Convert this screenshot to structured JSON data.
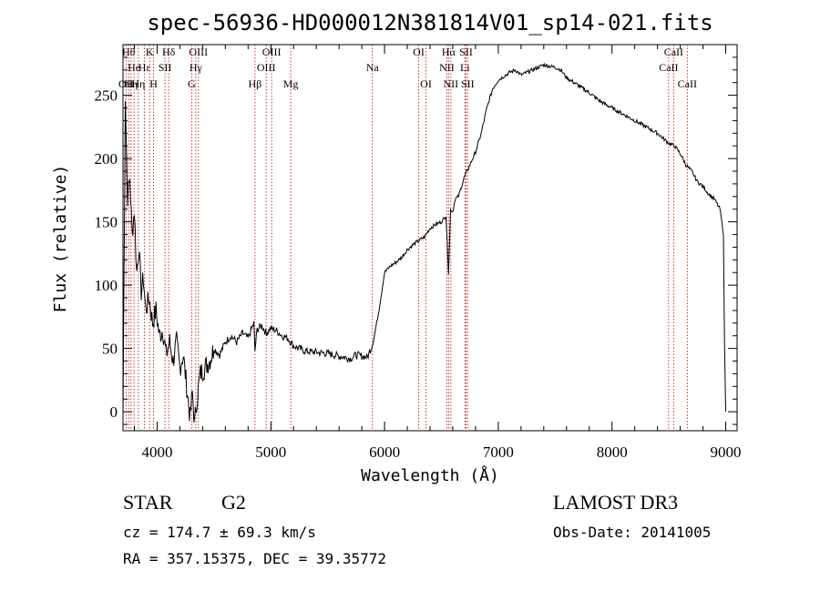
{
  "chart_data": {
    "type": "line",
    "title": "spec-56936-HD000012N381814V01_sp14-021.fits",
    "xlabel": "Wavelength (Å)",
    "ylabel": "Flux (relative)",
    "xlim": [
      3700,
      9100
    ],
    "ylim": [
      -15,
      290
    ],
    "xticks": [
      4000,
      5000,
      6000,
      7000,
      8000,
      9000
    ],
    "yticks": [
      0,
      50,
      100,
      150,
      200,
      250
    ],
    "series": [
      {
        "values_note": "",
        "x": [
          3700,
          3720,
          3740,
          3760,
          3780,
          3800,
          3820,
          3840,
          3860,
          3880,
          3900,
          3930,
          3960,
          3990,
          4020,
          4050,
          4080,
          4110,
          4140,
          4170,
          4200,
          4230,
          4260,
          4290,
          4310,
          4330,
          4350,
          4380,
          4420,
          4460,
          4500,
          4550,
          4600,
          4650,
          4700,
          4750,
          4800,
          4850,
          4860,
          4880,
          4920,
          4960,
          5000,
          5050,
          5100,
          5150,
          5200,
          5250,
          5300,
          5400,
          5500,
          5600,
          5700,
          5750,
          5800,
          5850,
          5900,
          5950,
          6000,
          6050,
          6100,
          6150,
          6200,
          6250,
          6300,
          6350,
          6400,
          6450,
          6500,
          6540,
          6563,
          6580,
          6600,
          6620,
          6650,
          6700,
          6750,
          6800,
          6850,
          6900,
          6950,
          7000,
          7050,
          7100,
          7150,
          7200,
          7300,
          7400,
          7500,
          7550,
          7600,
          7700,
          7800,
          7900,
          8000,
          8100,
          8200,
          8300,
          8400,
          8500,
          8550,
          8600,
          8650,
          8700,
          8750,
          8800,
          8850,
          8900,
          8950,
          8980,
          8990,
          9000
        ],
        "y": [
          -5,
          250,
          170,
          185,
          140,
          160,
          110,
          130,
          95,
          105,
          80,
          90,
          70,
          80,
          60,
          65,
          45,
          55,
          40,
          55,
          35,
          45,
          20,
          -5,
          15,
          -10,
          10,
          30,
          35,
          40,
          50,
          45,
          55,
          60,
          55,
          62,
          58,
          70,
          48,
          65,
          68,
          62,
          66,
          64,
          60,
          58,
          52,
          50,
          48,
          47,
          46,
          44,
          42,
          45,
          44,
          43,
          55,
          80,
          110,
          115,
          118,
          122,
          128,
          132,
          135,
          138,
          145,
          148,
          150,
          155,
          110,
          160,
          158,
          168,
          170,
          185,
          195,
          205,
          220,
          240,
          255,
          262,
          265,
          268,
          270,
          266,
          270,
          274,
          272,
          270,
          264,
          258,
          252,
          245,
          240,
          235,
          230,
          225,
          220,
          212,
          210,
          204,
          195,
          190,
          182,
          178,
          172,
          168,
          160,
          140,
          50,
          0
        ]
      }
    ],
    "line_markers": [
      {
        "x": 3727,
        "label": "OII",
        "row": 3
      },
      {
        "x": 3750,
        "label": "Hθ",
        "row": 1
      },
      {
        "x": 3770,
        "label": "Hη",
        "row": 3
      },
      {
        "x": 3797,
        "label": "He",
        "row": 2
      },
      {
        "x": 3835,
        "label": "Hη",
        "row": 3
      },
      {
        "x": 3889,
        "label": "Hε",
        "row": 2
      },
      {
        "x": 3934,
        "label": "K",
        "row": 1
      },
      {
        "x": 3969,
        "label": "H",
        "row": 3
      },
      {
        "x": 4069,
        "label": "SII",
        "row": 2
      },
      {
        "x": 4102,
        "label": "Hδ",
        "row": 1
      },
      {
        "x": 4304,
        "label": "G",
        "row": 3
      },
      {
        "x": 4340,
        "label": "Hγ",
        "row": 2
      },
      {
        "x": 4363,
        "label": "OIII",
        "row": 1
      },
      {
        "x": 4861,
        "label": "Hβ",
        "row": 3
      },
      {
        "x": 4959,
        "label": "OIII",
        "row": 2
      },
      {
        "x": 5007,
        "label": "OIII",
        "row": 1
      },
      {
        "x": 5175,
        "label": "Mg",
        "row": 3
      },
      {
        "x": 5893,
        "label": "Na",
        "row": 2
      },
      {
        "x": 6300,
        "label": "OI",
        "row": 1
      },
      {
        "x": 6364,
        "label": "OI",
        "row": 3
      },
      {
        "x": 6548,
        "label": "NII",
        "row": 2
      },
      {
        "x": 6563,
        "label": "Hα",
        "row": 1
      },
      {
        "x": 6583,
        "label": "NII",
        "row": 3
      },
      {
        "x": 6707,
        "label": "Li",
        "row": 2
      },
      {
        "x": 6717,
        "label": "SII",
        "row": 1
      },
      {
        "x": 6731,
        "label": "SII",
        "row": 3
      },
      {
        "x": 8498,
        "label": "CaII",
        "row": 2
      },
      {
        "x": 8542,
        "label": "CaII",
        "row": 1
      },
      {
        "x": 8662,
        "label": "CaII",
        "row": 3
      }
    ],
    "info": {
      "object_class": "STAR",
      "subclass": "G2",
      "survey": "LAMOST DR3",
      "cz": "cz = 174.7 ± 69.3 km/s",
      "obs_date": "Obs-Date: 20141005",
      "coords": "RA = 357.15375, DEC =  39.35772"
    },
    "colors": {
      "spectrum": "#000000",
      "marker_lines": "#c00000",
      "axes": "#000000"
    }
  }
}
